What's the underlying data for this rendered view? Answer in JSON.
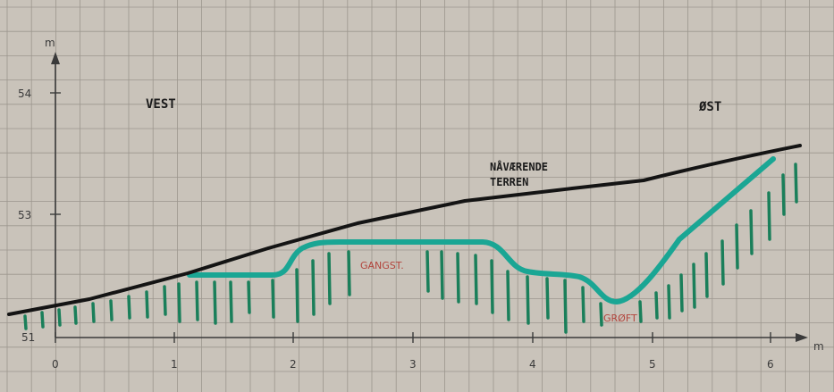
{
  "labels": {
    "west": "VEST",
    "east": "ØST",
    "terrain_line1": "NÅVÆRENDE",
    "terrain_line2": "TERREN",
    "path": "GANGST.",
    "ditch": "GRØFT"
  },
  "axes": {
    "y_unit": "m",
    "x_unit": "m",
    "y_ticks": [
      "54",
      "53",
      "51"
    ],
    "x_ticks": [
      "0",
      "1",
      "2",
      "3",
      "4",
      "5",
      "6"
    ]
  },
  "colors": {
    "paper": "#c9c3ba",
    "grid": "#9c968e",
    "terrain": "#141414",
    "design": "#1aa694",
    "hatch": "#1a7f5a",
    "label_red": "#b2443c"
  }
}
